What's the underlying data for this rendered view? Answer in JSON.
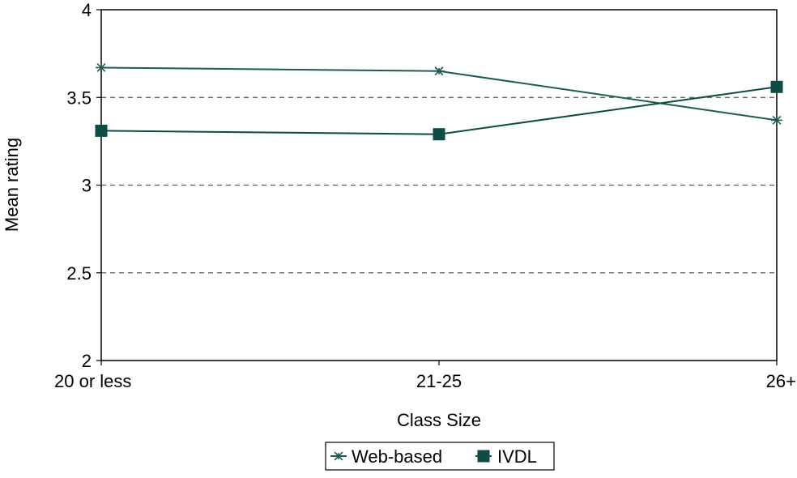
{
  "chart_data": {
    "type": "line",
    "title": "",
    "xlabel": "Class Size",
    "ylabel": "Mean rating",
    "categories": [
      "20 or less",
      "21-25",
      "26+"
    ],
    "ylim": [
      2,
      4
    ],
    "yticks": [
      "2",
      "2.5",
      "3",
      "3.5",
      "4"
    ],
    "grid": "horizontal dashed",
    "legend_position": "bottom",
    "series": [
      {
        "name": "Web-based",
        "values": [
          3.67,
          3.65,
          3.37
        ],
        "marker": "star",
        "color": "#1f5a55"
      },
      {
        "name": "IVDL",
        "values": [
          3.31,
          3.29,
          3.56
        ],
        "marker": "square",
        "color": "#0f4a45"
      }
    ]
  }
}
